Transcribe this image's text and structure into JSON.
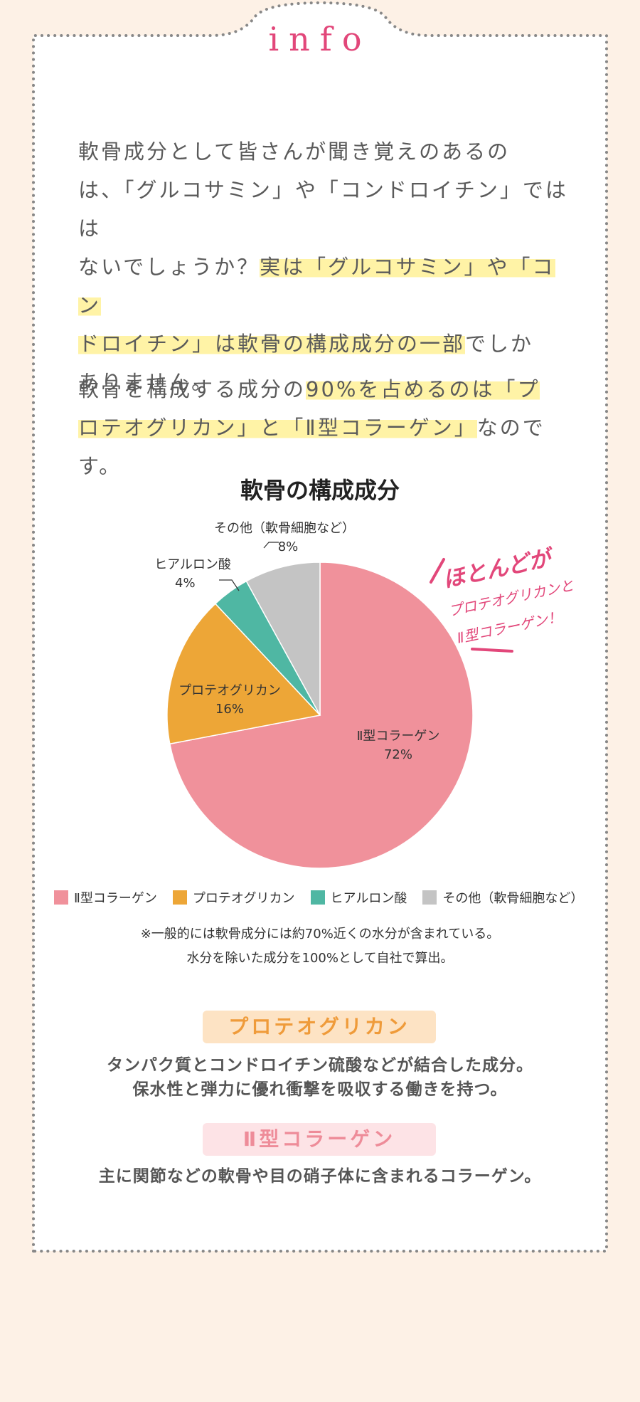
{
  "header": {
    "title": "info"
  },
  "intro": {
    "p1_lines": [
      [
        {
          "t": "軟骨成分として皆さんが聞き覚えのあるの",
          "hl": false
        }
      ],
      [
        {
          "t": "は、「グルコサミン」や「コンドロイチン」ではは",
          "hl": false
        }
      ],
      [
        {
          "t": "ないでしょうか？",
          "hl": false
        },
        {
          "t": "実は「グルコサミン」や「コン",
          "hl": true
        }
      ],
      [
        {
          "t": "ドロイチン」は軟骨の構成成分の一部",
          "hl": true
        },
        {
          "t": "でしか",
          "hl": false
        }
      ],
      [
        {
          "t": "ありません。",
          "hl": false
        }
      ]
    ],
    "p2_lines": [
      [
        {
          "t": "軟骨を構成する成分の",
          "hl": false
        },
        {
          "t": "90%を占めるのは「プ",
          "hl": true
        }
      ],
      [
        {
          "t": "ロテオグリカン」と「Ⅱ型コラーゲン」",
          "hl": true
        },
        {
          "t": "なのです。",
          "hl": false
        }
      ]
    ]
  },
  "chart_data": {
    "type": "pie",
    "title": "軟骨の構成成分",
    "slices": [
      {
        "name": "Ⅱ型コラーゲン",
        "value": 72,
        "label": "72%",
        "color": "#f0919b"
      },
      {
        "name": "プロテオグリカン",
        "value": 16,
        "label": "16%",
        "color": "#eda637"
      },
      {
        "name": "ヒアルロン酸",
        "value": 4,
        "label": "4%",
        "color": "#4fb7a3"
      },
      {
        "name": "その他（軟骨細胞など）",
        "value": 8,
        "label": "8%",
        "color": "#c4c4c4"
      }
    ],
    "legend_position": "bottom",
    "annotation": [
      "ほとんどが",
      "プロテオグリカンと",
      "Ⅱ型コラーゲン！"
    ]
  },
  "notes": {
    "line1": "※一般的には軟骨成分には約70%近くの水分が含まれている。",
    "line2": "水分を除いた成分を100%として自社で算出。"
  },
  "sections": {
    "proteoglycan": {
      "badge": "プロテオグリカン",
      "line1": "タンパク質とコンドロイチン硫酸などが結合した成分。",
      "line2": "保水性と弾力に優れ衝撃を吸収する働きを持つ。"
    },
    "collagen": {
      "badge": "Ⅱ型コラーゲン",
      "line1": "主に関節などの軟骨や目の硝子体に含まれるコラーゲン。"
    }
  },
  "colors": {
    "background": "#fdf1e6",
    "card": "#ffffff",
    "accent": "#e2477a",
    "dots": "#888888"
  }
}
